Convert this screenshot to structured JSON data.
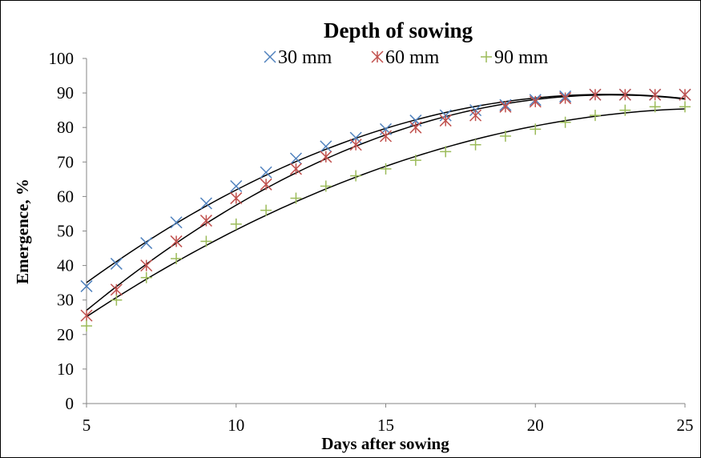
{
  "chart_data": {
    "type": "scatter",
    "title": "Depth of sowing",
    "xlabel": "Days after sowing",
    "ylabel": "Emergence, %",
    "xlim": [
      5,
      25
    ],
    "ylim": [
      0,
      100
    ],
    "x_ticks": [
      "5",
      "10",
      "15",
      "20",
      "25"
    ],
    "y_ticks": [
      "0",
      "10",
      "20",
      "30",
      "40",
      "50",
      "60",
      "70",
      "80",
      "90",
      "100"
    ],
    "grid": false,
    "legend_position": "top",
    "x": [
      5,
      6,
      7,
      8,
      9,
      10,
      11,
      12,
      13,
      14,
      15,
      16,
      17,
      18,
      19,
      20,
      21,
      22,
      23,
      24,
      25
    ],
    "series": [
      {
        "name": "30 mm",
        "marker": "x",
        "color": "#4f81bd",
        "values": [
          34,
          40.5,
          46.5,
          52.5,
          58,
          63,
          67,
          71,
          74.5,
          77,
          79.5,
          82,
          83.5,
          85,
          86.5,
          88,
          89,
          89.5,
          89.5,
          89.5,
          89.5
        ]
      },
      {
        "name": "60 mm",
        "marker": "star",
        "color": "#c0504d",
        "values": [
          25.5,
          33,
          40,
          47,
          53,
          59.5,
          63.5,
          68,
          71.5,
          75,
          77.5,
          80,
          82,
          83.5,
          86,
          87.5,
          88.5,
          89.5,
          89.5,
          89.5,
          89.5
        ]
      },
      {
        "name": "90 mm",
        "marker": "plus",
        "color": "#9bbb59",
        "values": [
          22.5,
          30,
          36.5,
          42,
          47,
          52,
          56,
          59.5,
          63,
          66,
          68,
          70.5,
          73,
          75,
          77.5,
          79.5,
          81.5,
          83.5,
          85,
          86,
          86
        ]
      }
    ]
  }
}
